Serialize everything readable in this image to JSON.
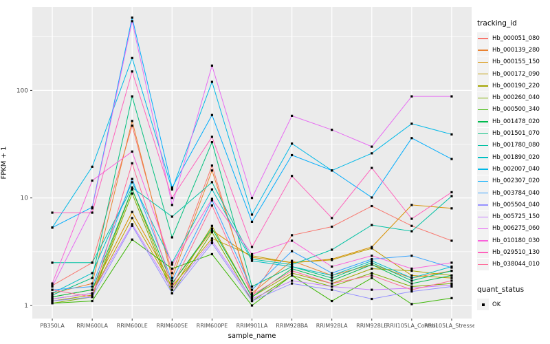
{
  "chart_data": {
    "type": "line",
    "title": "",
    "xlabel": "sample_name",
    "ylabel": "FPKM + 1",
    "y_scale": "log10",
    "y_ticks": [
      "1",
      "10",
      "100"
    ],
    "y_tick_values": [
      1,
      10,
      100
    ],
    "y_minor_values": [
      3.1623,
      31.623,
      316.23
    ],
    "ylim": [
      1,
      600
    ],
    "grid": true,
    "legend_position": "right",
    "panel_bg": "#EBEBEB",
    "grid_color": "#FFFFFF",
    "tick_label_color": "#4D4D4D",
    "tick_mark_color": "#333333",
    "point_color": "#000000",
    "legend_key_bg": "#F2F2F2",
    "categories": [
      "PB350LA",
      "RRIM600LA",
      "RRIM600LE",
      "RRIM600SE",
      "RRIM600PE",
      "RRIM901LA",
      "RRIM928BA",
      "RRIM928LA",
      "RRIM928LE",
      "RRII105LA_Control",
      "RRII105LA_Stressed"
    ],
    "legend": {
      "title": "tracking_id"
    },
    "quant_legend": {
      "title": "quant_status",
      "items": [
        {
          "label": "OK",
          "marker": "black-square"
        }
      ]
    },
    "series": [
      {
        "name": "Hb_000051_080",
        "color": "#F8766D",
        "values": [
          1.53,
          2.5,
          47,
          2.0,
          20,
          1.2,
          4.5,
          5.4,
          8.4,
          5.5,
          4.0
        ]
      },
      {
        "name": "Hb_000139_280",
        "color": "#EA8331",
        "values": [
          1.3,
          1.6,
          52,
          1.8,
          18,
          1.3,
          2.6,
          1.9,
          2.4,
          1.8,
          2.1
        ]
      },
      {
        "name": "Hb_000155_150",
        "color": "#D89000",
        "values": [
          1.2,
          1.4,
          7.4,
          1.6,
          5.0,
          2.8,
          2.5,
          2.7,
          3.5,
          8.6,
          8.0
        ]
      },
      {
        "name": "Hb_000172_090",
        "color": "#C09B00",
        "values": [
          1.15,
          1.3,
          6.5,
          1.5,
          4.2,
          2.9,
          2.5,
          2.65,
          3.4,
          1.9,
          1.8
        ]
      },
      {
        "name": "Hb_000190_220",
        "color": "#A3A500",
        "values": [
          1.1,
          1.25,
          12,
          1.4,
          5.5,
          1.2,
          2.0,
          1.6,
          2.2,
          2.1,
          1.9
        ]
      },
      {
        "name": "Hb_000260_040",
        "color": "#7CAE00",
        "values": [
          1.05,
          1.2,
          11,
          1.3,
          4.8,
          1.1,
          1.9,
          1.5,
          2.0,
          1.5,
          1.6
        ]
      },
      {
        "name": "Hb_000500_340",
        "color": "#39B600",
        "values": [
          1.05,
          1.1,
          4.1,
          2.2,
          3.0,
          1.0,
          1.9,
          1.1,
          1.8,
          1.03,
          1.17
        ]
      },
      {
        "name": "Hb_001478_020",
        "color": "#00BB4E",
        "values": [
          1.2,
          1.4,
          12,
          1.6,
          5.2,
          1.2,
          2.2,
          1.7,
          2.4,
          1.6,
          1.9
        ]
      },
      {
        "name": "Hb_001501_070",
        "color": "#00BF7D",
        "values": [
          1.25,
          1.8,
          88,
          4.3,
          33,
          1.5,
          2.3,
          1.8,
          2.5,
          1.7,
          2.1
        ]
      },
      {
        "name": "Hb_001780_080",
        "color": "#00C1A3",
        "values": [
          2.5,
          2.5,
          12.5,
          6.7,
          14,
          2.7,
          2.4,
          3.3,
          5.6,
          4.9,
          10.4
        ]
      },
      {
        "name": "Hb_001890_020",
        "color": "#00BFC4",
        "values": [
          1.3,
          2.0,
          14,
          2.5,
          12,
          2.6,
          2.3,
          1.9,
          2.6,
          1.8,
          2.3
        ]
      },
      {
        "name": "Hb_002007_040",
        "color": "#00B8E7",
        "values": [
          5.3,
          19.5,
          200,
          12,
          120,
          7.0,
          32,
          18,
          26,
          49,
          39
        ]
      },
      {
        "name": "Hb_002307_020",
        "color": "#00ACFC",
        "values": [
          5.3,
          8.2,
          475,
          12.5,
          59,
          6.0,
          25,
          18,
          10.1,
          36,
          23
        ]
      },
      {
        "name": "Hb_003784_040",
        "color": "#35A2FF",
        "values": [
          1.4,
          1.5,
          15,
          1.7,
          9.5,
          1.4,
          3.2,
          2.0,
          2.7,
          2.9,
          2.25
        ]
      },
      {
        "name": "Hb_005504_040",
        "color": "#9590FF",
        "values": [
          1.1,
          1.2,
          5.5,
          1.3,
          3.8,
          1.1,
          1.6,
          1.4,
          1.15,
          1.35,
          1.5
        ]
      },
      {
        "name": "Hb_005725_150",
        "color": "#C77CFF",
        "values": [
          1.15,
          1.3,
          5.7,
          1.4,
          4.0,
          1.15,
          1.7,
          1.5,
          1.4,
          1.45,
          1.55
        ]
      },
      {
        "name": "Hb_006275_060",
        "color": "#E76BF3",
        "values": [
          1.5,
          8.0,
          440,
          8.6,
          170,
          10,
          58,
          43,
          30,
          88,
          88
        ]
      },
      {
        "name": "Hb_010180_030",
        "color": "#FA62DB",
        "values": [
          1.6,
          14.5,
          27,
          2.4,
          9.8,
          3.0,
          4.0,
          2.3,
          2.9,
          2.2,
          2.5
        ]
      },
      {
        "name": "Hb_029510_130",
        "color": "#FF62BC",
        "values": [
          7.3,
          7.3,
          150,
          10,
          37,
          3.5,
          16,
          6.5,
          19,
          6.4,
          11.3
        ]
      },
      {
        "name": "Hb_038044_010",
        "color": "#FF6A98",
        "values": [
          1.4,
          1.2,
          21,
          1.5,
          8.5,
          1.25,
          2.1,
          1.6,
          1.9,
          1.4,
          1.7
        ]
      }
    ]
  }
}
